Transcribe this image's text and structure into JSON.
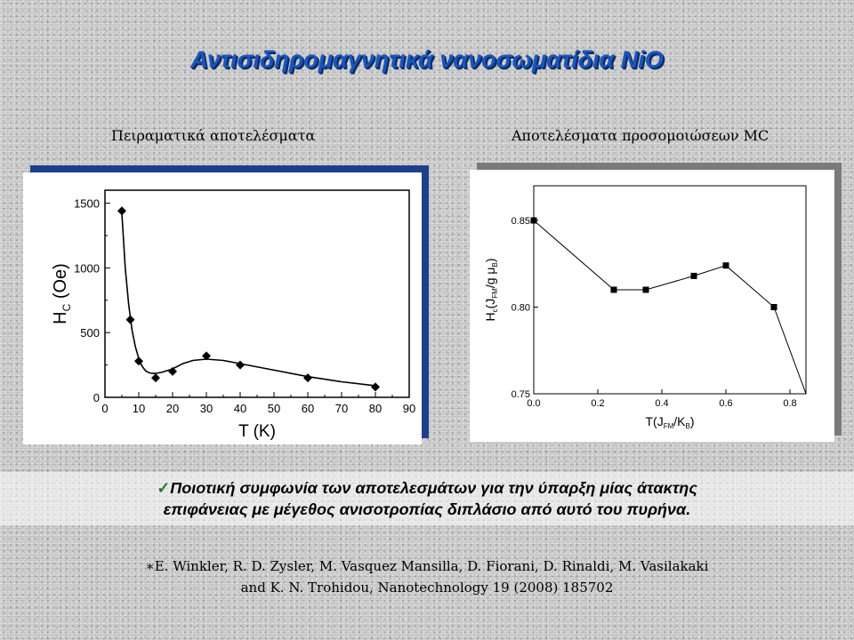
{
  "slide": {
    "title": "Αντισιδηρομαγνητικά νανοσωματίδια NiO",
    "left_heading": "Πειραματικά αποτελέσματα",
    "right_heading": "Αποτελέσματα προσομοιώσεων MC",
    "conclusion_check": "✓",
    "conclusion_line1": "Ποιοτική συμφωνία των αποτελεσμάτων για την ύπαρξη μίας άτακτης",
    "conclusion_line2": "επιφάνειας με μέγεθος ανισοτροπίας διπλάσιο από αυτό του πυρήνα.",
    "reference_line1": "∗E. Winkler, R. D. Zysler, M. Vasquez Mansilla, D. Fiorani, D. Rinaldi, M. Vasilakaki",
    "reference_line2": "and K. N. Trohidou, Nanotechnology 19 (2008) 185702",
    "colors": {
      "title": "#1a56b8",
      "left_frame": "#1f3f8a",
      "right_frame": "#7a7a7a"
    }
  },
  "chart_data": [
    {
      "type": "scatter",
      "title": "",
      "xlabel": "T (K)",
      "ylabel": "H_C (Oe)",
      "xlim": [
        0,
        90
      ],
      "ylim": [
        0,
        1600
      ],
      "xticks": [
        0,
        10,
        20,
        30,
        40,
        50,
        60,
        70,
        80,
        90
      ],
      "yticks": [
        0,
        500,
        1000,
        1500
      ],
      "x": [
        5,
        7.5,
        10,
        15,
        20,
        30,
        40,
        60,
        80
      ],
      "y": [
        1440,
        600,
        280,
        150,
        200,
        320,
        250,
        150,
        80
      ],
      "fit_curve": {
        "x": [
          5,
          6,
          7,
          8,
          9,
          10,
          11,
          12,
          13,
          14,
          15,
          17,
          20,
          23,
          26,
          30,
          35,
          40,
          50,
          60,
          70,
          80
        ],
        "y": [
          1420,
          1000,
          720,
          520,
          390,
          300,
          240,
          205,
          190,
          185,
          185,
          195,
          220,
          260,
          285,
          295,
          285,
          260,
          210,
          160,
          120,
          90
        ]
      }
    },
    {
      "type": "line",
      "title": "",
      "xlabel": "T(J_FM/K_B)",
      "ylabel": "H_c(J_FM/g μ_B)",
      "xlim": [
        0,
        0.85
      ],
      "ylim": [
        0.75,
        0.87
      ],
      "xticks": [
        0.0,
        0.2,
        0.4,
        0.6,
        0.8
      ],
      "xtick_labels": [
        "0.0",
        "0.2",
        "0.4",
        "0.6",
        "0.8"
      ],
      "yticks": [
        0.75,
        0.8,
        0.85
      ],
      "ytick_labels": [
        "0.75",
        "0.80",
        "0.85"
      ],
      "x": [
        0.0,
        0.25,
        0.35,
        0.5,
        0.6,
        0.75,
        0.85
      ],
      "y": [
        0.85,
        0.81,
        0.81,
        0.818,
        0.824,
        0.8,
        0.75
      ]
    }
  ]
}
